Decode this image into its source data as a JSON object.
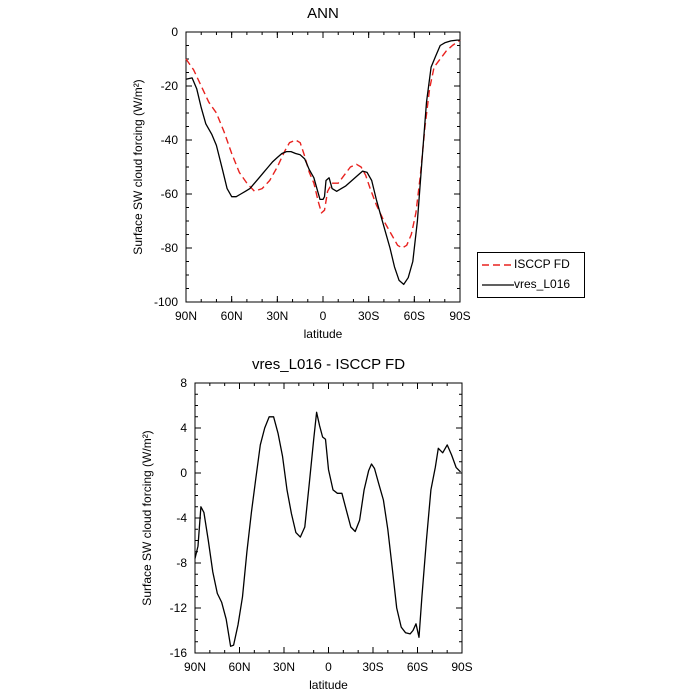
{
  "chart_data": [
    {
      "type": "line",
      "title": "ANN",
      "xlabel": "latitude",
      "ylabel": "Surface SW cloud forcing (W/m²)",
      "xlim": [
        90,
        -90
      ],
      "ylim": [
        -100,
        0
      ],
      "xticks": [
        {
          "value": 90,
          "label": "90N"
        },
        {
          "value": 60,
          "label": "60N"
        },
        {
          "value": 30,
          "label": "30N"
        },
        {
          "value": 0,
          "label": "0"
        },
        {
          "value": -30,
          "label": "30S"
        },
        {
          "value": -60,
          "label": "60S"
        },
        {
          "value": -90,
          "label": "90S"
        }
      ],
      "yticks": [
        {
          "value": 0,
          "label": "0"
        },
        {
          "value": -20,
          "label": "-20"
        },
        {
          "value": -40,
          "label": "-40"
        },
        {
          "value": -60,
          "label": "-60"
        },
        {
          "value": -80,
          "label": "-80"
        },
        {
          "value": -100,
          "label": "-100"
        }
      ],
      "legend": "right",
      "series": [
        {
          "name": "ISCCP FD",
          "color": "#e8221f",
          "dash": "dashed",
          "points": [
            [
              90,
              -10
            ],
            [
              85,
              -14
            ],
            [
              80,
              -20
            ],
            [
              75,
              -26
            ],
            [
              70,
              -30
            ],
            [
              65,
              -37
            ],
            [
              60,
              -45
            ],
            [
              55,
              -52
            ],
            [
              50,
              -56
            ],
            [
              45,
              -59
            ],
            [
              40,
              -58
            ],
            [
              35,
              -55
            ],
            [
              30,
              -50
            ],
            [
              25,
              -44
            ],
            [
              22,
              -41
            ],
            [
              18,
              -40
            ],
            [
              15,
              -41
            ],
            [
              12,
              -46
            ],
            [
              9,
              -52
            ],
            [
              6,
              -56
            ],
            [
              3,
              -63
            ],
            [
              1,
              -67
            ],
            [
              -1,
              -66
            ],
            [
              -3,
              -59
            ],
            [
              -6,
              -56
            ],
            [
              -10,
              -56
            ],
            [
              -14,
              -53
            ],
            [
              -18,
              -50
            ],
            [
              -22,
              -49
            ],
            [
              -25,
              -50
            ],
            [
              -28,
              -53
            ],
            [
              -31,
              -58
            ],
            [
              -35,
              -64
            ],
            [
              -40,
              -70
            ],
            [
              -45,
              -75
            ],
            [
              -49,
              -79
            ],
            [
              -52,
              -80
            ],
            [
              -55,
              -79
            ],
            [
              -58,
              -75
            ],
            [
              -61,
              -67
            ],
            [
              -64,
              -53
            ],
            [
              -67,
              -35
            ],
            [
              -70,
              -21
            ],
            [
              -73,
              -13
            ],
            [
              -77,
              -10
            ],
            [
              -81,
              -7
            ],
            [
              -85,
              -5
            ],
            [
              -90,
              -3
            ]
          ]
        },
        {
          "name": "vres_L016",
          "color": "#000000",
          "dash": "solid",
          "points": [
            [
              90,
              -17.5
            ],
            [
              86,
              -17
            ],
            [
              83,
              -21
            ],
            [
              80,
              -28
            ],
            [
              77,
              -34
            ],
            [
              73,
              -38
            ],
            [
              70,
              -42
            ],
            [
              66,
              -51
            ],
            [
              63,
              -58
            ],
            [
              60,
              -61
            ],
            [
              57,
              -61
            ],
            [
              54,
              -60
            ],
            [
              51,
              -59
            ],
            [
              48,
              -58
            ],
            [
              45,
              -56
            ],
            [
              42,
              -54
            ],
            [
              39,
              -52
            ],
            [
              36,
              -50
            ],
            [
              33,
              -48
            ],
            [
              30,
              -46.5
            ],
            [
              27,
              -45
            ],
            [
              24,
              -44.3
            ],
            [
              21,
              -44.3
            ],
            [
              18,
              -45
            ],
            [
              15,
              -45.5
            ],
            [
              12,
              -47
            ],
            [
              9,
              -51
            ],
            [
              6,
              -54
            ],
            [
              4,
              -58
            ],
            [
              2,
              -62
            ],
            [
              0,
              -62
            ],
            [
              -1,
              -61
            ],
            [
              -2,
              -55
            ],
            [
              -4,
              -54
            ],
            [
              -6,
              -58
            ],
            [
              -9,
              -59
            ],
            [
              -12,
              -58
            ],
            [
              -15,
              -57
            ],
            [
              -19,
              -55
            ],
            [
              -23,
              -53
            ],
            [
              -26,
              -51.5
            ],
            [
              -29,
              -52
            ],
            [
              -32,
              -55
            ],
            [
              -35,
              -62
            ],
            [
              -38,
              -68
            ],
            [
              -41,
              -74
            ],
            [
              -44,
              -80
            ],
            [
              -47,
              -87
            ],
            [
              -50,
              -92
            ],
            [
              -53,
              -93.5
            ],
            [
              -56,
              -91
            ],
            [
              -59,
              -85
            ],
            [
              -62,
              -70
            ],
            [
              -65,
              -48
            ],
            [
              -68,
              -26
            ],
            [
              -71,
              -13
            ],
            [
              -74,
              -9
            ],
            [
              -77,
              -5
            ],
            [
              -80,
              -4
            ],
            [
              -84,
              -3.3
            ],
            [
              -88,
              -3
            ],
            [
              -90,
              -3
            ]
          ]
        }
      ]
    },
    {
      "type": "line",
      "title": "vres_L016 - ISCCP FD",
      "xlabel": "latitude",
      "ylabel": "Surface SW cloud forcing (W/m²)",
      "xlim": [
        90,
        -90
      ],
      "ylim": [
        -16,
        8
      ],
      "xticks": [
        {
          "value": 90,
          "label": "90N"
        },
        {
          "value": 60,
          "label": "60N"
        },
        {
          "value": 30,
          "label": "30N"
        },
        {
          "value": 0,
          "label": "0"
        },
        {
          "value": -30,
          "label": "30S"
        },
        {
          "value": -60,
          "label": "60S"
        },
        {
          "value": -90,
          "label": "90S"
        }
      ],
      "yticks": [
        {
          "value": 8,
          "label": "8"
        },
        {
          "value": 4,
          "label": "4"
        },
        {
          "value": 0,
          "label": "0"
        },
        {
          "value": -4,
          "label": "-4"
        },
        {
          "value": -8,
          "label": "-8"
        },
        {
          "value": -12,
          "label": "-12"
        },
        {
          "value": -16,
          "label": "-16"
        }
      ],
      "series": [
        {
          "color": "#000000",
          "dash": "solid",
          "points": [
            [
              90,
              -7.6
            ],
            [
              88,
              -6.5
            ],
            [
              86,
              -3
            ],
            [
              84,
              -3.5
            ],
            [
              81,
              -6
            ],
            [
              78,
              -8.8
            ],
            [
              75,
              -10.7
            ],
            [
              72,
              -11.5
            ],
            [
              69,
              -13
            ],
            [
              66,
              -15.4
            ],
            [
              64,
              -15.3
            ],
            [
              61,
              -13.5
            ],
            [
              58,
              -11
            ],
            [
              55,
              -7
            ],
            [
              52,
              -3.5
            ],
            [
              49,
              -0.5
            ],
            [
              46,
              2.5
            ],
            [
              43,
              4
            ],
            [
              40,
              5
            ],
            [
              37,
              5
            ],
            [
              34,
              3.5
            ],
            [
              31,
              1.5
            ],
            [
              28,
              -1.5
            ],
            [
              25,
              -3.6
            ],
            [
              22,
              -5.3
            ],
            [
              19,
              -5.7
            ],
            [
              16,
              -4.8
            ],
            [
              13,
              -1
            ],
            [
              10,
              3
            ],
            [
              8,
              5.4
            ],
            [
              6,
              4.2
            ],
            [
              4,
              3.2
            ],
            [
              2,
              3
            ],
            [
              0,
              0.3
            ],
            [
              -3,
              -1.5
            ],
            [
              -6,
              -1.8
            ],
            [
              -9,
              -1.8
            ],
            [
              -12,
              -3.3
            ],
            [
              -15,
              -4.8
            ],
            [
              -18,
              -5.2
            ],
            [
              -21,
              -4.2
            ],
            [
              -24,
              -1.5
            ],
            [
              -27,
              0.2
            ],
            [
              -29,
              0.8
            ],
            [
              -31,
              0.4
            ],
            [
              -34,
              -1
            ],
            [
              -37,
              -2.4
            ],
            [
              -40,
              -5
            ],
            [
              -43,
              -8.5
            ],
            [
              -46,
              -12
            ],
            [
              -49,
              -13.7
            ],
            [
              -52,
              -14.2
            ],
            [
              -55,
              -14.3
            ],
            [
              -57,
              -14
            ],
            [
              -59,
              -13.4
            ],
            [
              -61,
              -14.6
            ],
            [
              -63,
              -11
            ],
            [
              -66,
              -6
            ],
            [
              -69,
              -1.5
            ],
            [
              -72,
              0.5
            ],
            [
              -74,
              2.2
            ],
            [
              -77,
              1.8
            ],
            [
              -80,
              2.5
            ],
            [
              -83,
              1.6
            ],
            [
              -86,
              0.5
            ],
            [
              -89,
              0.1
            ]
          ]
        }
      ]
    }
  ]
}
